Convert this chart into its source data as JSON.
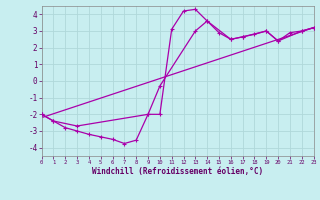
{
  "bg_color": "#c8eef0",
  "grid_color": "#b0d8da",
  "line_color": "#aa00aa",
  "xlabel": "Windchill (Refroidissement éolien,°C)",
  "xlabel_color": "#660066",
  "tick_color": "#660066",
  "xlim": [
    0,
    23
  ],
  "ylim": [
    -4.5,
    4.5
  ],
  "yticks": [
    -4,
    -3,
    -2,
    -1,
    0,
    1,
    2,
    3,
    4
  ],
  "xticks": [
    0,
    1,
    2,
    3,
    4,
    5,
    6,
    7,
    8,
    9,
    10,
    11,
    12,
    13,
    14,
    15,
    16,
    17,
    18,
    19,
    20,
    21,
    22,
    23
  ],
  "curve1_x": [
    0,
    1,
    2,
    3,
    4,
    5,
    6,
    7,
    8,
    9,
    10,
    11,
    12,
    13,
    14,
    15,
    16,
    17,
    18,
    19,
    20,
    21,
    22,
    23
  ],
  "curve1_y": [
    -2.0,
    -2.4,
    -2.8,
    -3.0,
    -3.2,
    -3.35,
    -3.5,
    -3.75,
    -3.55,
    -2.0,
    -2.0,
    3.1,
    4.2,
    4.3,
    3.6,
    2.9,
    2.5,
    2.65,
    2.8,
    3.0,
    2.4,
    2.9,
    3.0,
    3.2
  ],
  "curve2_x": [
    0,
    1,
    3,
    9,
    10,
    13,
    14,
    16,
    17,
    19,
    20,
    22,
    23
  ],
  "curve2_y": [
    -2.0,
    -2.4,
    -2.7,
    -2.0,
    -0.3,
    3.0,
    3.6,
    2.5,
    2.65,
    3.0,
    2.4,
    3.0,
    3.2
  ],
  "line_x": [
    0,
    23
  ],
  "line_y": [
    -2.2,
    3.2
  ]
}
